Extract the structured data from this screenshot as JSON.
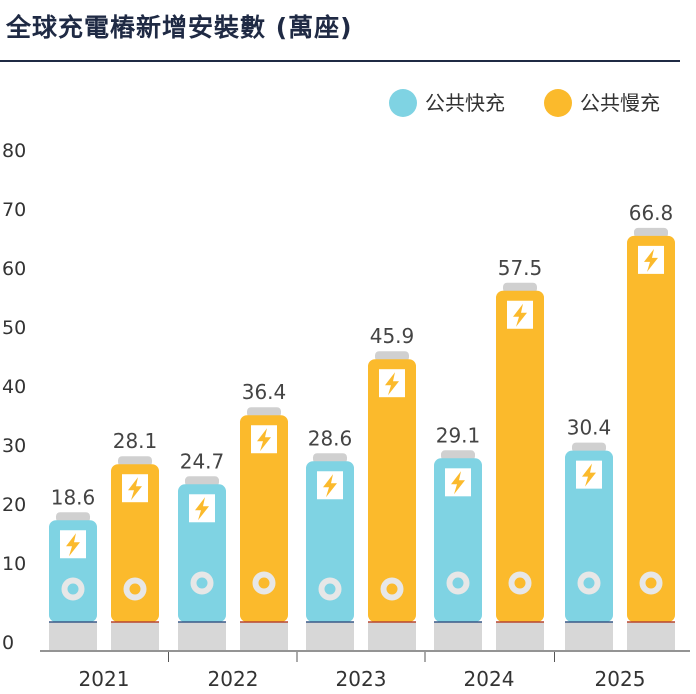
{
  "title": "全球充電樁新增安裝數 (萬座)",
  "chart_data": {
    "type": "bar",
    "title": "全球充電樁新增安裝數 (萬座)",
    "categories": [
      "2021",
      "2022",
      "2023",
      "2024",
      "2025"
    ],
    "series": [
      {
        "name": "公共快充",
        "values": [
          18.6,
          24.7,
          28.6,
          29.1,
          30.4
        ],
        "color": "#7fd3e3"
      },
      {
        "name": "公共慢充",
        "values": [
          28.1,
          36.4,
          45.9,
          57.5,
          66.8
        ],
        "color": "#fbba2c"
      }
    ],
    "yticks": [
      "0",
      "10",
      "20",
      "30",
      "40",
      "50",
      "60",
      "70",
      "80"
    ],
    "ylim": [
      0,
      80
    ],
    "legend": "top-right",
    "xlabel": "",
    "ylabel": "",
    "bar_icons": [
      "lightning-bolt",
      "plug-socket"
    ]
  },
  "colors": {
    "fast": "#7fd3e3",
    "slow": "#fbba2c",
    "base": "#d7d7d7",
    "cap": "#d0d0d0",
    "title": "#1f2a44",
    "bolt": "#fbba2c"
  }
}
